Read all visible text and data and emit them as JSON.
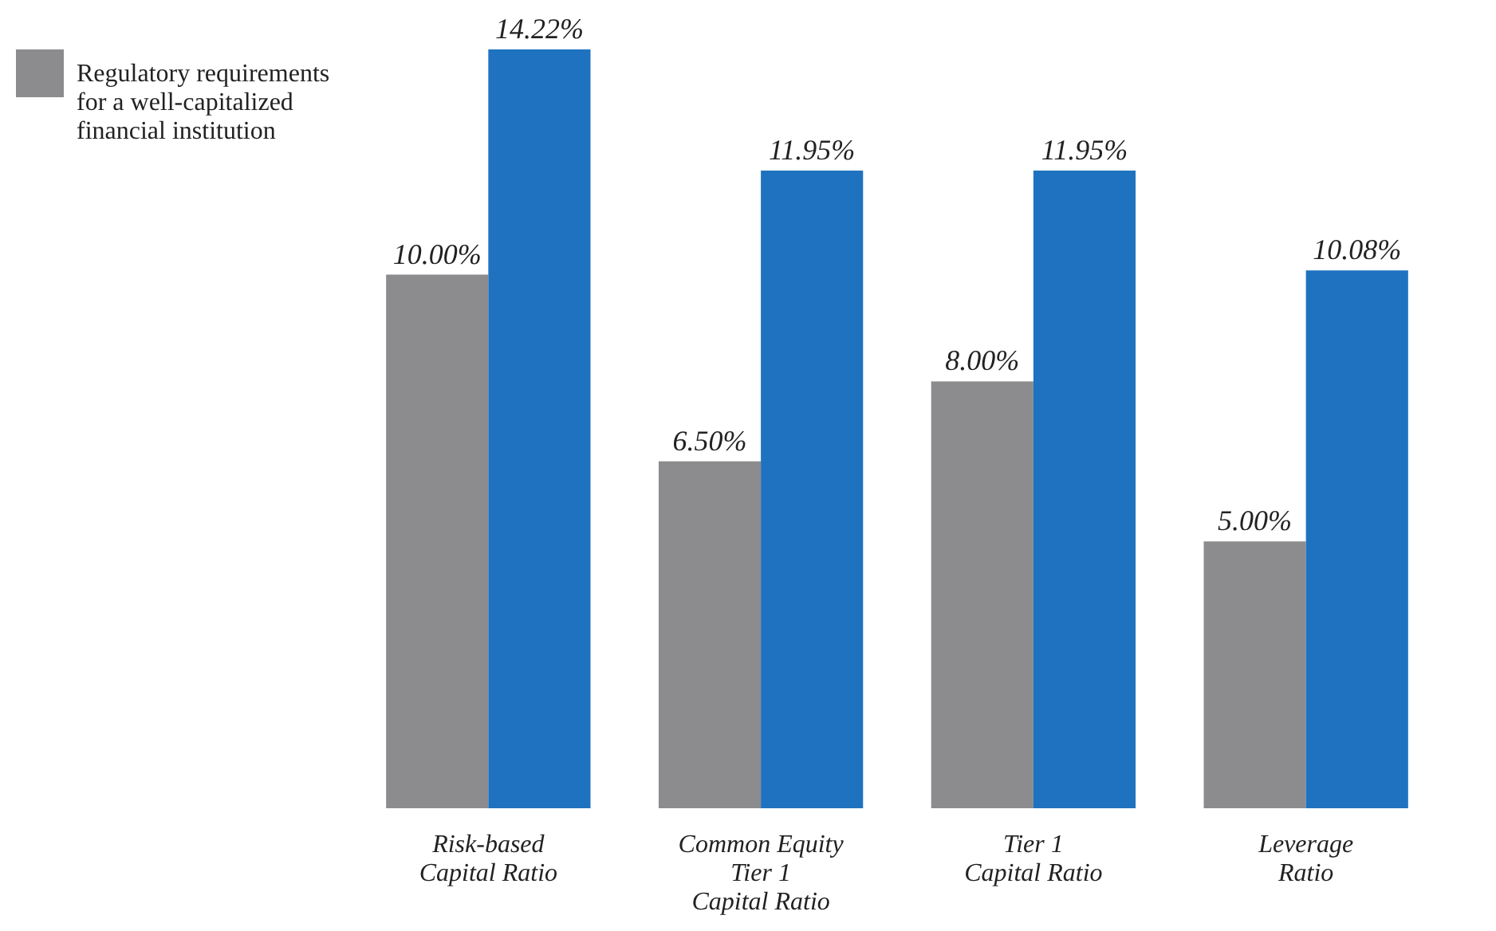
{
  "chart_data": {
    "type": "bar",
    "categories": [
      "Risk-based Capital Ratio",
      "Common Equity Tier 1 Capital Ratio",
      "Tier 1 Capital Ratio",
      "Leverage Ratio"
    ],
    "series": [
      {
        "name": "Regulatory requirements for a well-capitalized financial institution",
        "color": "#8c8c8e",
        "values": [
          10.0,
          6.5,
          8.0,
          5.0
        ],
        "value_labels": [
          "10.00%",
          "6.50%",
          "8.00%",
          "5.00%"
        ]
      },
      {
        "color": "#1f72bf",
        "values": [
          14.22,
          11.95,
          11.95,
          10.08
        ],
        "value_labels": [
          "14.22%",
          "11.95%",
          "11.95%",
          "10.08%"
        ]
      }
    ],
    "legend": "left"
  }
}
